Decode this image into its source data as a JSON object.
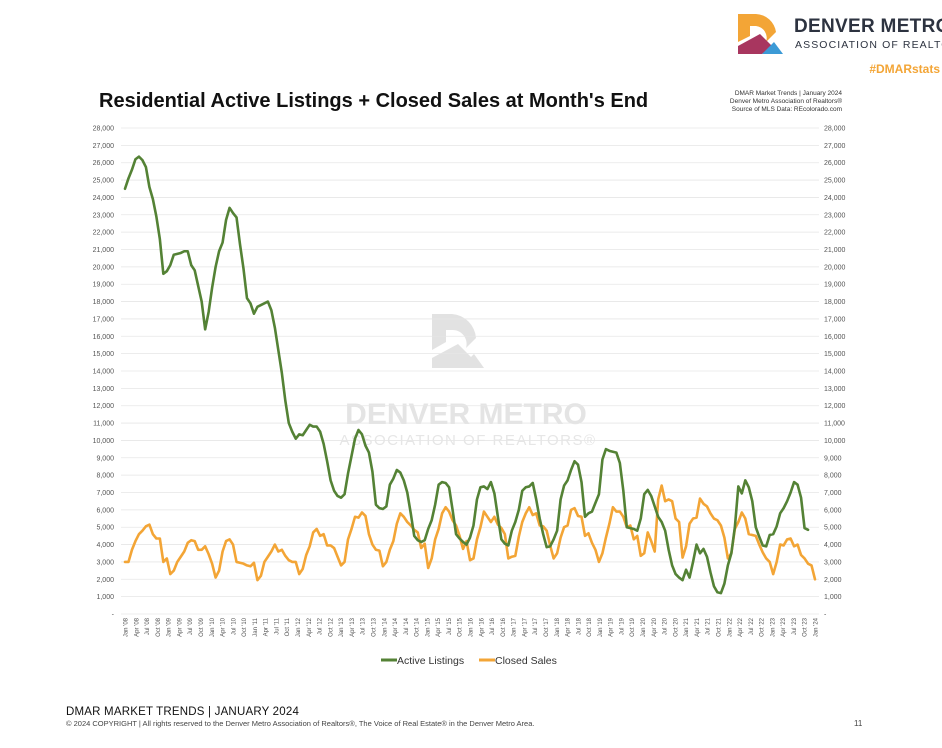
{
  "header": {
    "brand_name": "DENVER METRO",
    "brand_sub": "ASSOCIATION OF REALTORS",
    "hashtag": "#DMARstats",
    "brand_colors": {
      "orange": "#F3A536",
      "magenta": "#A8365F",
      "navy": "#2D3340",
      "blue": "#3C9AD6"
    }
  },
  "source": {
    "line1": "DMAR Market Trends | January 2024",
    "line2": "Denver Metro Association of Realtors®",
    "line3": "Source of MLS Data: REcolorado.com"
  },
  "watermark": {
    "line1": "DENVER METRO",
    "line2": "ASSOCIATION OF REALTORS®"
  },
  "chart_data": {
    "type": "line",
    "title": "Residential Active Listings + Closed Sales at Month's End",
    "xlabel": "",
    "ylabel": "",
    "ylim": [
      0,
      28000
    ],
    "yticks": [
      "-",
      "1,000",
      "2,000",
      "3,000",
      "4,000",
      "5,000",
      "6,000",
      "7,000",
      "8,000",
      "9,000",
      "10,000",
      "11,000",
      "12,000",
      "13,000",
      "14,000",
      "15,000",
      "16,000",
      "17,000",
      "18,000",
      "19,000",
      "20,000",
      "21,000",
      "22,000",
      "23,000",
      "24,000",
      "25,000",
      "26,000",
      "27,000",
      "28,000"
    ],
    "xticks": [
      "Jan '08",
      "Apr '08",
      "Jul '08",
      "Oct '08",
      "Jan '09",
      "Apr '09",
      "Jul '09",
      "Oct '09",
      "Jan '10",
      "Apr '10",
      "Jul '10",
      "Oct '10",
      "Jan '11",
      "Apr '11",
      "Jul '11",
      "Oct '11",
      "Jan '12",
      "Apr '12",
      "Jul '12",
      "Oct '12",
      "Jan '13",
      "Apr '13",
      "Jul '13",
      "Oct '13",
      "Jan '14",
      "Apr '14",
      "Jul '14",
      "Oct '14",
      "Jan '15",
      "Apr '15",
      "Jul '15",
      "Oct '15",
      "Jan '16",
      "Apr '16",
      "Jul '16",
      "Oct '16",
      "Jan '17",
      "Apr '17",
      "Jul '17",
      "Oct '17",
      "Jan '18",
      "Apr '18",
      "Jul '18",
      "Oct '18",
      "Jan '19",
      "Apr '19",
      "Jul '19",
      "Oct '19",
      "Jan '20",
      "Apr '20",
      "Jul '20",
      "Oct '20",
      "Jan '21",
      "Apr '21",
      "Jul '21",
      "Oct '21",
      "Jan '22",
      "Apr '22",
      "Jul '22",
      "Oct '22",
      "Jan '23",
      "Apr '23",
      "Jul '23",
      "Oct '23",
      "Jan '24"
    ],
    "legend_position": "bottom",
    "grid": true,
    "series": [
      {
        "name": "Active Listings",
        "color": "#548235",
        "values": [
          24500,
          25100,
          25600,
          26200,
          26350,
          26150,
          25750,
          24600,
          23900,
          22900,
          21600,
          19600,
          19750,
          20100,
          20700,
          20750,
          20800,
          20900,
          20900,
          20100,
          19800,
          18900,
          18000,
          16400,
          17400,
          18800,
          20000,
          20900,
          21400,
          22700,
          23400,
          23100,
          22850,
          21300,
          19900,
          18200,
          17900,
          17300,
          17700,
          17800,
          17900,
          18000,
          17500,
          16500,
          15200,
          13900,
          12300,
          11000,
          10500,
          10100,
          10350,
          10300,
          10600,
          10900,
          10800,
          10800,
          10500,
          9800,
          8800,
          7700,
          7100,
          6800,
          6700,
          6900,
          8100,
          9100,
          10100,
          10600,
          10350,
          9700,
          9300,
          8200,
          6300,
          6100,
          6050,
          6200,
          7450,
          7800,
          8300,
          8150,
          7700,
          7000,
          5800,
          4500,
          4250,
          4150,
          4250,
          4900,
          5400,
          6300,
          7450,
          7600,
          7550,
          7300,
          6000,
          4600,
          4350,
          4150,
          4000,
          4400,
          5100,
          6600,
          7300,
          7350,
          7200,
          7600,
          6950,
          5600,
          4300,
          4050,
          3950,
          4800,
          5300,
          6000,
          7100,
          7300,
          7350,
          7550,
          6600,
          5500,
          4600,
          3850,
          3900,
          4300,
          4800,
          6600,
          7400,
          7700,
          8300,
          8800,
          8600,
          7600,
          5600,
          5800,
          5900,
          6400,
          6900,
          8900,
          9500,
          9400,
          9350,
          9300,
          8700,
          7100,
          5000,
          4950,
          4900,
          4800,
          5500,
          6900,
          7150,
          6800,
          6200,
          5600,
          5300,
          4800,
          3700,
          2800,
          2300,
          2100,
          1950,
          2550,
          2100,
          3000,
          4000,
          3500,
          3750,
          3300,
          2400,
          1600,
          1250,
          1200,
          1750,
          2800,
          3500,
          5000,
          7350,
          6950,
          7700,
          7300,
          6500,
          5000,
          4450,
          3950,
          3900,
          4550,
          4600,
          5050,
          5800,
          6100,
          6500,
          7000,
          7600,
          7450,
          6700,
          4950,
          4850
        ]
      },
      {
        "name": "Closed Sales",
        "color": "#F3A536",
        "values": [
          3000,
          3000,
          3700,
          4200,
          4600,
          4800,
          5050,
          5150,
          4600,
          4350,
          4350,
          3000,
          3200,
          2300,
          2500,
          3000,
          3300,
          3600,
          4100,
          4250,
          4200,
          3700,
          3700,
          3900,
          3450,
          2900,
          2100,
          2500,
          3600,
          4200,
          4300,
          4000,
          3000,
          2950,
          2900,
          2800,
          2750,
          2950,
          1950,
          2200,
          3000,
          3300,
          3600,
          4000,
          3600,
          3700,
          3350,
          3100,
          3000,
          3000,
          2300,
          2600,
          3400,
          3900,
          4700,
          4900,
          4500,
          4600,
          3950,
          3950,
          3800,
          3300,
          2800,
          3000,
          4300,
          4900,
          5600,
          5550,
          5850,
          5650,
          4600,
          4000,
          3700,
          3650,
          2750,
          3000,
          3700,
          4200,
          5200,
          5800,
          5600,
          5300,
          5100,
          4850,
          4700,
          3800,
          4050,
          2650,
          3200,
          4300,
          4900,
          5800,
          6150,
          5900,
          5400,
          5100,
          4500,
          3750,
          4200,
          3100,
          3200,
          4300,
          5000,
          5900,
          5600,
          5300,
          5600,
          5150,
          4950,
          4600,
          3200,
          3300,
          3350,
          4450,
          5300,
          5800,
          6150,
          5700,
          5800,
          5100,
          5050,
          4800,
          3950,
          3200,
          3500,
          4400,
          5000,
          5100,
          6000,
          6100,
          5650,
          5600,
          4500,
          4650,
          4100,
          3700,
          3000,
          3500,
          4400,
          5200,
          6150,
          5900,
          5900,
          5600,
          5000,
          5100,
          4300,
          4500,
          3350,
          3500,
          4700,
          4200,
          3600,
          6600,
          7400,
          6500,
          6600,
          6500,
          5500,
          5300,
          3250,
          3900,
          5200,
          5500,
          5550,
          6650,
          6350,
          6200,
          5800,
          5500,
          5400,
          5100,
          4400,
          3200,
          3500,
          4900,
          5300,
          5850,
          5500,
          4600,
          4550,
          4500,
          4000,
          3550,
          3200,
          3000,
          2300,
          3000,
          4000,
          3950,
          4300,
          4350,
          3900,
          4000,
          3400,
          3200,
          2900,
          2800,
          2000
        ]
      }
    ]
  },
  "footer": {
    "title": "DMAR MARKET TRENDS | JANUARY 2024",
    "copyright": "© 2024 COPYRIGHT | All rights reserved to the Denver Metro Association of Realtors®, The Voice of Real Estate® in the Denver Metro Area.",
    "page_number": "11"
  }
}
